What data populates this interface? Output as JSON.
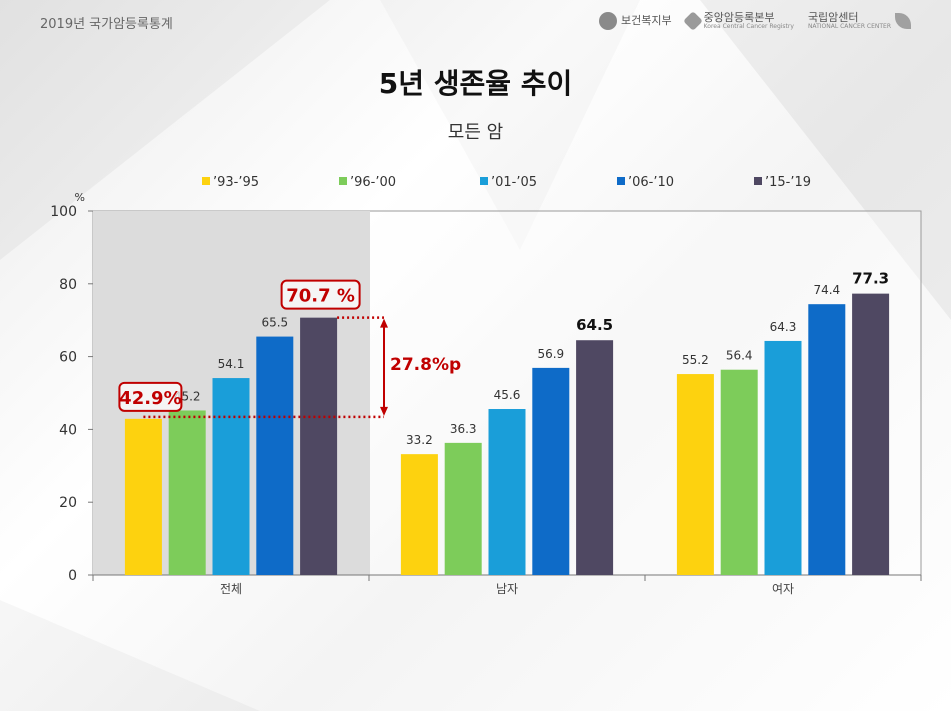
{
  "header": {
    "label": "2019년 국가암등록통계",
    "logos": [
      {
        "name": "보건복지부",
        "sub": ""
      },
      {
        "name": "중앙암등록본부",
        "sub": "Korea Central Cancer Registry"
      },
      {
        "name": "국립암센터",
        "sub": "NATIONAL CANCER CENTER"
      }
    ]
  },
  "chart_data": {
    "type": "bar",
    "title": "5년 생존율 추이",
    "subtitle": "모든 암",
    "ylabel": "%",
    "ylim": [
      0,
      100
    ],
    "yticks": [
      0,
      20,
      40,
      60,
      80,
      100
    ],
    "categories": [
      "전체",
      "남자",
      "여자"
    ],
    "legend_position": "top",
    "series": [
      {
        "name": "’93-’95",
        "color": "#fdd20f",
        "values": [
          42.9,
          33.2,
          55.2
        ],
        "labels": [
          "42.9%",
          "33.2",
          "55.2"
        ]
      },
      {
        "name": "’96-’00",
        "color": "#7dcc5a",
        "values": [
          45.2,
          36.3,
          56.4
        ],
        "labels": [
          "45.2",
          "36.3",
          "56.4"
        ]
      },
      {
        "name": "’01-’05",
        "color": "#1a9ed9",
        "values": [
          54.1,
          45.6,
          64.3
        ],
        "labels": [
          "54.1",
          "45.6",
          "64.3"
        ]
      },
      {
        "name": "’06-’10",
        "color": "#0e6bc8",
        "values": [
          65.5,
          56.9,
          74.4
        ],
        "labels": [
          "65.5",
          "56.9",
          "74.4"
        ]
      },
      {
        "name": "’15-’19",
        "color": "#4f4862",
        "values": [
          70.7,
          64.5,
          77.3
        ],
        "labels": [
          "70.7 %",
          "64.5",
          "77.3"
        ]
      }
    ],
    "annotations": {
      "difference_label": "27.8%p",
      "accent_color": "#c00000",
      "highlight_color": "#dcdcdc"
    }
  }
}
